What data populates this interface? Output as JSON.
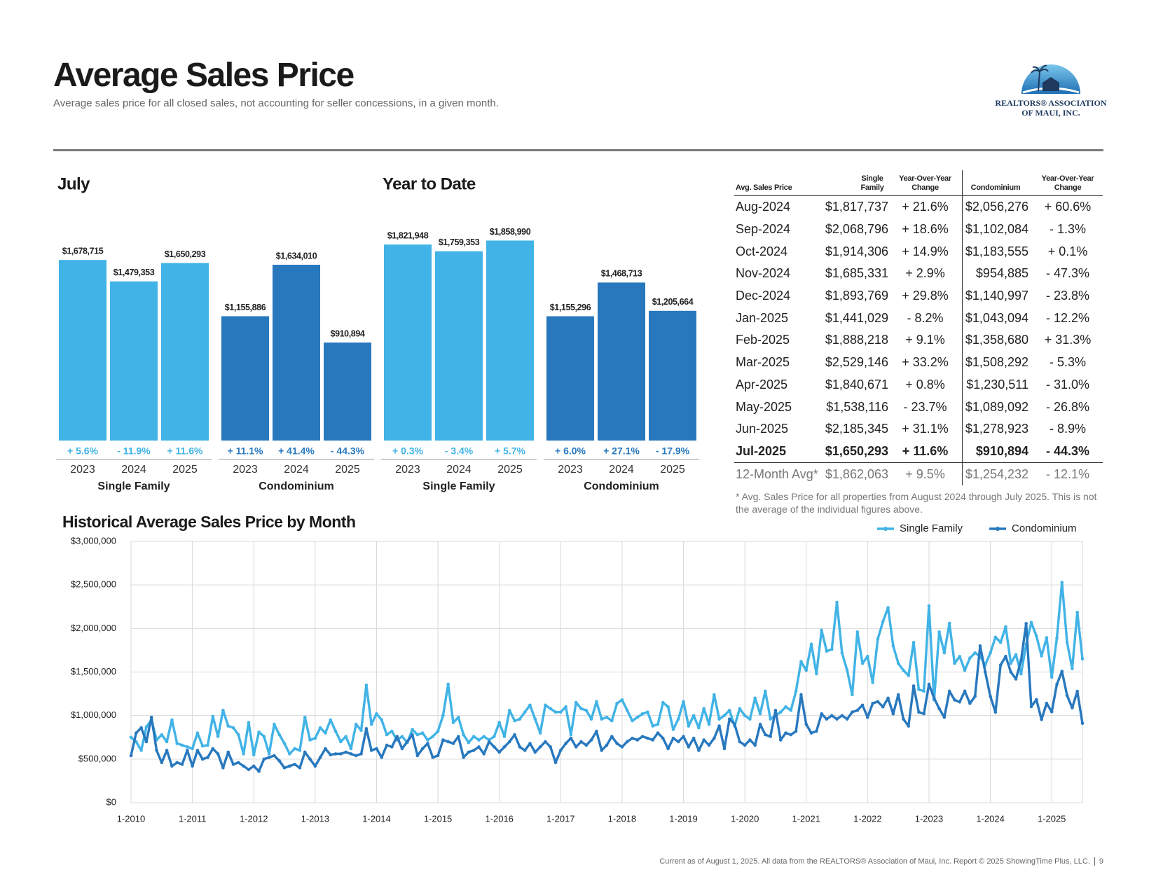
{
  "header": {
    "title": "Average Sales Price",
    "subtitle": "Average sales price for all closed sales, not accounting for seller concessions, in a given month."
  },
  "logo": {
    "line1": "REALTORS® ASSOCIATION",
    "line2": "OF MAUI, INC."
  },
  "chart_data": [
    {
      "type": "bar",
      "title": "July",
      "groups": [
        {
          "name": "Single Family",
          "color": "#41b3e6",
          "categories": [
            "2023",
            "2024",
            "2025"
          ],
          "values": [
            1678715,
            1479353,
            1650293
          ],
          "value_labels": [
            "$1,678,715",
            "$1,479,353",
            "$1,650,293"
          ],
          "changes": [
            "+ 5.6%",
            "- 11.9%",
            "+ 11.6%"
          ]
        },
        {
          "name": "Condominium",
          "color": "#2878be",
          "categories": [
            "2023",
            "2024",
            "2025"
          ],
          "values": [
            1155886,
            1634010,
            910894
          ],
          "value_labels": [
            "$1,155,886",
            "$1,634,010",
            "$910,894"
          ],
          "changes": [
            "+ 11.1%",
            "+ 41.4%",
            "- 44.3%"
          ]
        }
      ]
    },
    {
      "type": "bar",
      "title": "Year to Date",
      "groups": [
        {
          "name": "Single Family",
          "color": "#41b3e6",
          "categories": [
            "2023",
            "2024",
            "2025"
          ],
          "values": [
            1821948,
            1759353,
            1858990
          ],
          "value_labels": [
            "$1,821,948",
            "$1,759,353",
            "$1,858,990"
          ],
          "changes": [
            "+ 0.3%",
            "- 3.4%",
            "+ 5.7%"
          ]
        },
        {
          "name": "Condominium",
          "color": "#2878be",
          "categories": [
            "2023",
            "2024",
            "2025"
          ],
          "values": [
            1155296,
            1468713,
            1205664
          ],
          "value_labels": [
            "$1,155,296",
            "$1,468,713",
            "$1,205,664"
          ],
          "changes": [
            "+ 6.0%",
            "+ 27.1%",
            "- 17.9%"
          ]
        }
      ]
    },
    {
      "type": "line",
      "title": "Historical Average Sales Price by Month",
      "grid": true,
      "legend": "top-right",
      "ylim": [
        0,
        3000000
      ],
      "yticks": [
        {
          "value": 0,
          "label": "$0"
        },
        {
          "value": 500000,
          "label": "$500,000"
        },
        {
          "value": 1000000,
          "label": "$1,000,000"
        },
        {
          "value": 1500000,
          "label": "$1,500,000"
        },
        {
          "value": 2000000,
          "label": "$2,000,000"
        },
        {
          "value": 2500000,
          "label": "$2,500,000"
        },
        {
          "value": 3000000,
          "label": "$3,000,000"
        }
      ],
      "categories": [
        "1-2010",
        null,
        null,
        null,
        null,
        null,
        null,
        null,
        null,
        null,
        null,
        null,
        "1-2011",
        null,
        null,
        null,
        null,
        null,
        null,
        null,
        null,
        null,
        null,
        null,
        "1-2012",
        null,
        null,
        null,
        null,
        null,
        null,
        null,
        null,
        null,
        null,
        null,
        "1-2013",
        null,
        null,
        null,
        null,
        null,
        null,
        null,
        null,
        null,
        null,
        null,
        "1-2014",
        null,
        null,
        null,
        null,
        null,
        null,
        null,
        null,
        null,
        null,
        null,
        "1-2015",
        null,
        null,
        null,
        null,
        null,
        null,
        null,
        null,
        null,
        null,
        null,
        "1-2016",
        null,
        null,
        null,
        null,
        null,
        null,
        null,
        null,
        null,
        null,
        null,
        "1-2017",
        null,
        null,
        null,
        null,
        null,
        null,
        null,
        null,
        null,
        null,
        null,
        "1-2018",
        null,
        null,
        null,
        null,
        null,
        null,
        null,
        null,
        null,
        null,
        null,
        "1-2019",
        null,
        null,
        null,
        null,
        null,
        null,
        null,
        null,
        null,
        null,
        null,
        "1-2020",
        null,
        null,
        null,
        null,
        null,
        null,
        null,
        null,
        null,
        null,
        null,
        "1-2021",
        null,
        null,
        null,
        null,
        null,
        null,
        null,
        null,
        null,
        null,
        null,
        "1-2022",
        null,
        null,
        null,
        null,
        null,
        null,
        null,
        null,
        null,
        null,
        null,
        "1-2023",
        null,
        null,
        null,
        null,
        null,
        null,
        null,
        null,
        null,
        null,
        null,
        "1-2024",
        null,
        null,
        null,
        null,
        null,
        null,
        null,
        null,
        null,
        null,
        null,
        "1-2025",
        null,
        null,
        null,
        null,
        null,
        null
      ],
      "series": [
        {
          "name": "Single Family",
          "color": "#41b3e6",
          "values": [
            750000,
            700000,
            600000,
            870000,
            950000,
            720000,
            780000,
            700000,
            950000,
            680000,
            660000,
            640000,
            620000,
            800000,
            650000,
            660000,
            990000,
            760000,
            1060000,
            880000,
            860000,
            780000,
            560000,
            920000,
            550000,
            810000,
            760000,
            560000,
            900000,
            780000,
            680000,
            560000,
            620000,
            600000,
            980000,
            720000,
            740000,
            860000,
            800000,
            950000,
            820000,
            700000,
            760000,
            620000,
            900000,
            830000,
            1350000,
            900000,
            1020000,
            950000,
            780000,
            820000,
            720000,
            760000,
            690000,
            840000,
            780000,
            800000,
            720000,
            760000,
            820000,
            1000000,
            1360000,
            920000,
            980000,
            780000,
            690000,
            760000,
            720000,
            760000,
            720000,
            760000,
            920000,
            760000,
            1060000,
            940000,
            960000,
            1040000,
            1120000,
            960000,
            800000,
            1120000,
            1080000,
            1040000,
            1040000,
            1100000,
            780000,
            1150000,
            1080000,
            1060000,
            960000,
            1160000,
            960000,
            980000,
            940000,
            1140000,
            1180000,
            1060000,
            940000,
            980000,
            1020000,
            1040000,
            880000,
            900000,
            1150000,
            1100000,
            840000,
            960000,
            1160000,
            880000,
            1000000,
            860000,
            1080000,
            900000,
            1240000,
            960000,
            1000000,
            1060000,
            880000,
            1080000,
            1000000,
            960000,
            1200000,
            1020000,
            1280000,
            960000,
            1000000,
            1040000,
            1100000,
            1060000,
            1280000,
            1620000,
            1520000,
            1820000,
            1480000,
            1980000,
            1740000,
            1760000,
            2300000,
            1720000,
            1520000,
            1240000,
            1960000,
            1600000,
            1680000,
            1380000,
            1880000,
            2080000,
            2240000,
            1800000,
            1600000,
            1520000,
            1460000,
            1840000,
            1300000,
            1280000,
            2260000,
            1180000,
            1960000,
            1720000,
            2060000,
            1600000,
            1678715,
            1520000,
            1660000,
            1720000,
            1680000,
            1580000,
            1720000,
            1900000,
            1840000,
            2020000,
            1600000,
            1700000,
            1479353,
            1817737,
            2068796,
            1914306,
            1685331,
            1893769,
            1441029,
            1888218,
            2529146,
            1840671,
            1538116,
            2185345,
            1650293
          ]
        },
        {
          "name": "Condominium",
          "color": "#2878be",
          "values": [
            540000,
            800000,
            860000,
            700000,
            980000,
            600000,
            460000,
            600000,
            420000,
            460000,
            440000,
            600000,
            420000,
            600000,
            500000,
            520000,
            620000,
            560000,
            400000,
            580000,
            440000,
            460000,
            420000,
            380000,
            420000,
            360000,
            500000,
            520000,
            540000,
            480000,
            400000,
            420000,
            440000,
            400000,
            580000,
            500000,
            420000,
            520000,
            620000,
            550000,
            560000,
            560000,
            580000,
            560000,
            540000,
            560000,
            850000,
            600000,
            620000,
            520000,
            660000,
            640000,
            760000,
            620000,
            700000,
            780000,
            540000,
            620000,
            680000,
            520000,
            540000,
            720000,
            700000,
            680000,
            760000,
            520000,
            580000,
            600000,
            640000,
            560000,
            700000,
            640000,
            580000,
            640000,
            700000,
            780000,
            640000,
            600000,
            680000,
            580000,
            640000,
            700000,
            640000,
            460000,
            600000,
            680000,
            740000,
            640000,
            700000,
            660000,
            720000,
            820000,
            600000,
            660000,
            760000,
            680000,
            640000,
            700000,
            740000,
            720000,
            760000,
            740000,
            720000,
            800000,
            740000,
            620000,
            740000,
            700000,
            760000,
            640000,
            740000,
            600000,
            720000,
            660000,
            740000,
            880000,
            620000,
            960000,
            900000,
            700000,
            660000,
            720000,
            660000,
            900000,
            780000,
            760000,
            1060000,
            720000,
            800000,
            780000,
            820000,
            1240000,
            900000,
            800000,
            820000,
            1020000,
            960000,
            1000000,
            960000,
            1000000,
            960000,
            1040000,
            1060000,
            1120000,
            980000,
            1140000,
            1160000,
            1100000,
            1200000,
            1020000,
            1240000,
            960000,
            880000,
            1340000,
            1040000,
            1020000,
            1360000,
            1200000,
            1080000,
            980000,
            1280000,
            1180000,
            1155886,
            1280000,
            1140000,
            1220000,
            1800000,
            1500000,
            1220000,
            1040000,
            1580000,
            1680000,
            1500000,
            1420000,
            1634010,
            2056276,
            1102084,
            1183555,
            954885,
            1140997,
            1043094,
            1358680,
            1508292,
            1230511,
            1089092,
            1278923,
            910894
          ]
        }
      ]
    }
  ],
  "table": {
    "columns": [
      "Avg. Sales Price",
      "Single Family",
      "Year-Over-Year Change",
      "Condominium",
      "Year-Over-Year Change"
    ],
    "rows": [
      [
        "Aug-2024",
        "$1,817,737",
        "+ 21.6%",
        "$2,056,276",
        "+ 60.6%"
      ],
      [
        "Sep-2024",
        "$2,068,796",
        "+ 18.6%",
        "$1,102,084",
        "- 1.3%"
      ],
      [
        "Oct-2024",
        "$1,914,306",
        "+ 14.9%",
        "$1,183,555",
        "+ 0.1%"
      ],
      [
        "Nov-2024",
        "$1,685,331",
        "+ 2.9%",
        "$954,885",
        "- 47.3%"
      ],
      [
        "Dec-2024",
        "$1,893,769",
        "+ 29.8%",
        "$1,140,997",
        "- 23.8%"
      ],
      [
        "Jan-2025",
        "$1,441,029",
        "- 8.2%",
        "$1,043,094",
        "- 12.2%"
      ],
      [
        "Feb-2025",
        "$1,888,218",
        "+ 9.1%",
        "$1,358,680",
        "+ 31.3%"
      ],
      [
        "Mar-2025",
        "$2,529,146",
        "+ 33.2%",
        "$1,508,292",
        "- 5.3%"
      ],
      [
        "Apr-2025",
        "$1,840,671",
        "+ 0.8%",
        "$1,230,511",
        "- 31.0%"
      ],
      [
        "May-2025",
        "$1,538,116",
        "- 23.7%",
        "$1,089,092",
        "- 26.8%"
      ],
      [
        "Jun-2025",
        "$2,185,345",
        "+ 31.1%",
        "$1,278,923",
        "- 8.9%"
      ],
      [
        "Jul-2025",
        "$1,650,293",
        "+ 11.6%",
        "$910,894",
        "- 44.3%"
      ],
      [
        "12-Month Avg*",
        "$1,862,063",
        "+ 9.5%",
        "$1,254,232",
        "- 12.1%"
      ]
    ],
    "footnote": "* Avg. Sales Price for all properties from August 2024 through July 2025. This is not the average of the individual figures above."
  },
  "footer": {
    "text": "Current as of August 1, 2025. All data from the REALTORS® Association of Maui, Inc. Report © 2025 ShowingTime Plus, LLC.",
    "page": "9"
  }
}
